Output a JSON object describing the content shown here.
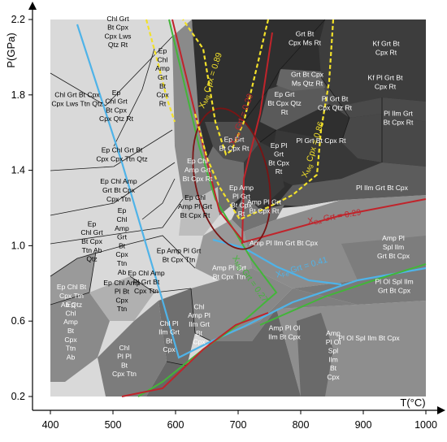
{
  "axes": {
    "xlabel": "T(°C)",
    "ylabel": "P(GPa)",
    "x_ticks": [
      "400",
      "500",
      "600",
      "700",
      "800",
      "900",
      "1000"
    ],
    "y_ticks": [
      "0.2",
      "0.6",
      "1.0",
      "1.4",
      "1.8",
      "2.2"
    ],
    "xlim": [
      400,
      1000
    ],
    "ylim": [
      0.2,
      2.2
    ]
  },
  "colors": {
    "light_gray": "#d9d9d9",
    "mid_gray": "#a6a6a6",
    "dark_gray": "#7a7a7a",
    "darker_gray": "#555555",
    "darkest_gray": "#2f2f2f",
    "blue_isopleth": "#4fb3e8",
    "green_isopleth": "#43b53a",
    "red_isopleth": "#c0242b",
    "yellow_isopleth": "#f2e12a",
    "dark_red_ellipse": "#7a1414"
  },
  "isopleth_labels": [
    {
      "text": "X",
      "sub": "Mg",
      "rest": " Cpx = 0.89",
      "color": "#f2e12a"
    },
    {
      "text": "X",
      "sub": "Ca",
      "rest": " Grt = 0.29",
      "color": "#c0242b"
    },
    {
      "text": "X",
      "sub": "Mg",
      "rest": " Cpx = 0.86",
      "color": "#f2e12a"
    },
    {
      "text": "X",
      "sub": "Ca",
      "rest": " Grt = 0.29",
      "color": "#c0242b"
    },
    {
      "text": "X",
      "sub": "Fe",
      "rest": " Grt = 0.41",
      "color": "#4fb3e8"
    },
    {
      "text": "X",
      "sub": "Mg",
      "rest": " Grt = 0.27",
      "color": "#43b53a"
    }
  ],
  "fields": [
    {
      "lines": [
        "Chl Grt",
        "Bt Cpx",
        "Cpx Lws",
        "Qtz Rt"
      ],
      "color": "#000"
    },
    {
      "lines": [
        "Chl Grt Bt Cpx",
        "Cpx Lws Ttn Qtz"
      ],
      "color": "#000"
    },
    {
      "lines": [
        "Ep",
        "Chl",
        "Amp",
        "Grt",
        "Bt",
        "Cpx",
        "Rt"
      ],
      "color": "#000"
    },
    {
      "lines": [
        "Ep",
        "Chl Grt",
        "Bt Cpx",
        "Cpx Qtz Rt"
      ],
      "color": "#000"
    },
    {
      "lines": [
        "Ep Chl Grt Bt",
        "Cpx Cpx Ttn Qtz"
      ],
      "color": "#000"
    },
    {
      "lines": [
        "Ep Chl Amp",
        "Grt Bt Cpx",
        "Cpx Ttn"
      ],
      "color": "#000"
    },
    {
      "lines": [
        "Grt Bt",
        "Cpx Ms Rt"
      ],
      "color": "#fff"
    },
    {
      "lines": [
        "Grt Bt Cpx",
        "Ms Qtz Rt"
      ],
      "color": "#fff"
    },
    {
      "lines": [
        "Kf Grt Bt",
        "Cpx Rt"
      ],
      "color": "#fff"
    },
    {
      "lines": [
        "Kf Pl Grt Bt",
        "Cpx Rt"
      ],
      "color": "#fff"
    },
    {
      "lines": [
        "Ep Grt",
        "Bt Cpx Qtz",
        "Rt"
      ],
      "color": "#fff"
    },
    {
      "lines": [
        "Pl Grt Bt",
        "Cpx Qtz Rt"
      ],
      "color": "#fff"
    },
    {
      "lines": [
        "Pl Ilm Grt",
        "Bt Cpx Rt"
      ],
      "color": "#fff"
    },
    {
      "lines": [
        "Ep Grt",
        "Bt Cpx Rt"
      ],
      "color": "#fff"
    },
    {
      "lines": [
        "Pl Grt Bt Cpx Rt"
      ],
      "color": "#fff"
    },
    {
      "lines": [
        "Ep Pl",
        "Grt",
        "Bt Cpx",
        "Rt"
      ],
      "color": "#fff"
    },
    {
      "lines": [
        "Pl Ilm Grt Bt Cpx"
      ],
      "color": "#fff"
    },
    {
      "lines": [
        "Ep Chl",
        "Amp Grt",
        "Bt Cpx Rt"
      ],
      "color": "#fff"
    },
    {
      "lines": [
        "Ep Amp",
        "Pl Grt",
        "Bt Cpx",
        "Rt"
      ],
      "color": "#fff"
    },
    {
      "lines": [
        "Amp Pl Grt",
        "Bt Cpx Rt"
      ],
      "color": "#fff"
    },
    {
      "lines": [
        "Ep Chl",
        "Amp Pl Grt",
        "Bt Cpx Rt"
      ],
      "color": "#000"
    },
    {
      "lines": [
        "Ep",
        "Chl Grt",
        "Bt Cpx",
        "Ttn Ab",
        "Qtz"
      ],
      "color": "#000"
    },
    {
      "lines": [
        "Ep",
        "Chl",
        "Amp",
        "Grt",
        "Bt",
        "Cpx",
        "Ttn",
        "Ab"
      ],
      "color": "#000"
    },
    {
      "lines": [
        "Ep Amp Pl Grt",
        "Bt Cpx Ttn"
      ],
      "color": "#000"
    },
    {
      "lines": [
        "Ep Chl Amp",
        "Pl Grt Bt",
        "Cpx Ttn"
      ],
      "color": "#000"
    },
    {
      "lines": [
        "Ep Chl Bt",
        "Cpx Ttn",
        "Ab Qtz"
      ],
      "color": "#fff"
    },
    {
      "lines": [
        "Ep",
        "Chl",
        "Amp",
        "Bt",
        "Cpx",
        "Ttn",
        "Ab"
      ],
      "color": "#fff"
    },
    {
      "lines": [
        "Ep Chl Amp",
        "Pl Bt",
        "Cpx",
        "Ttn"
      ],
      "color": "#000"
    },
    {
      "lines": [
        "Amp Pl Ilm Grt Bt Cpx"
      ],
      "color": "#fff"
    },
    {
      "lines": [
        "Amp Pl",
        "Spl Ilm",
        "Grt Bt Cpx"
      ],
      "color": "#fff"
    },
    {
      "lines": [
        "Amp Pl Grt",
        "Bt Cpx Ttn"
      ],
      "color": "#fff"
    },
    {
      "lines": [
        "Chl",
        "Amp Pl",
        "Ilm Grt",
        "Bt",
        "Cpx"
      ],
      "color": "#fff"
    },
    {
      "lines": [
        "Chl Pl",
        "Ilm Grt",
        "Bt",
        "Cpx"
      ],
      "color": "#fff"
    },
    {
      "lines": [
        "Chl",
        "Pl Pl",
        "Bt",
        "Cpx Ttn"
      ],
      "color": "#fff"
    },
    {
      "lines": [
        "Amp Pl Ol",
        "Ilm Bt Cpx"
      ],
      "color": "#fff"
    },
    {
      "lines": [
        "Pl Ol Spl Ilm",
        "Grt Bt Cpx"
      ],
      "color": "#fff"
    },
    {
      "lines": [
        "Pl Ol Spl Ilm Bt Cpx"
      ],
      "color": "#fff"
    },
    {
      "lines": [
        "Amp",
        "Pl Ol",
        "Spl",
        "Ilm",
        "Bt",
        "Cpx"
      ],
      "color": "#fff"
    }
  ]
}
